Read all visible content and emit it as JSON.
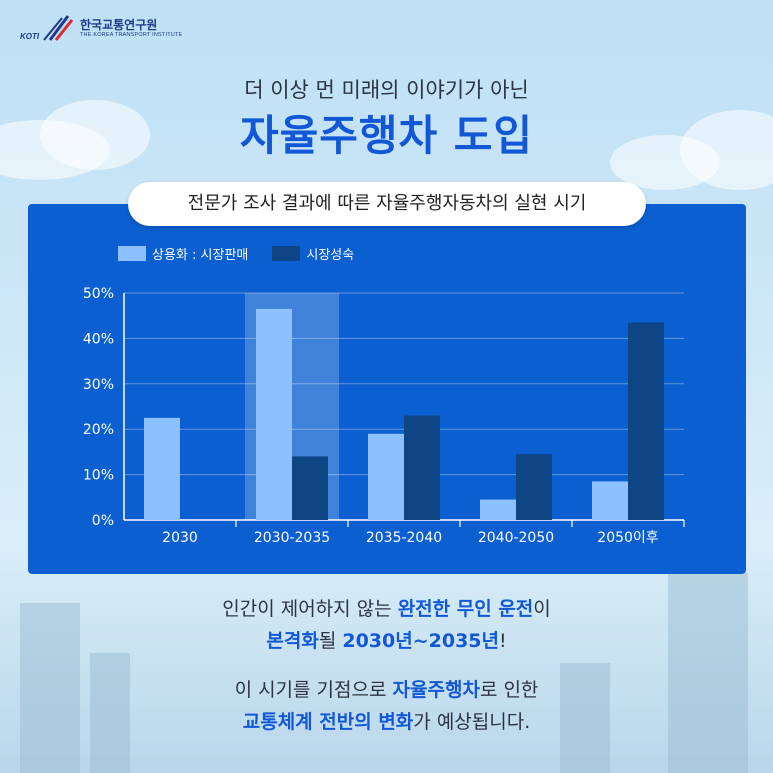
{
  "header": {
    "logo_kr": "한국교통연구원",
    "logo_en": "THE KOREA TRANSPORT INSTITUTE",
    "logo_mark": "KOTI"
  },
  "subtitle": "더 이상 먼 미래의 이야기가 아닌",
  "title": "자율주행차 도입",
  "chart_data": {
    "type": "bar",
    "title": "전문가 조사 결과에 따른 자율주행자동차의 실현 시기",
    "categories": [
      "2030",
      "2030-2035",
      "2035-2040",
      "2040-2050",
      "2050이후"
    ],
    "series": [
      {
        "name": "상용화 : 시장판매",
        "values": [
          22.5,
          46.5,
          19,
          4.5,
          8.5
        ],
        "color": "#8cc0ff"
      },
      {
        "name": "시장성숙",
        "values": [
          null,
          14,
          23,
          14.5,
          43.5
        ],
        "color": "#0e4585"
      }
    ],
    "ylim": [
      0,
      50
    ],
    "yticks": [
      "0%",
      "10%",
      "20%",
      "30%",
      "40%",
      "50%"
    ],
    "highlight_category": "2030-2035",
    "grid": true,
    "legend": "top-left"
  },
  "captions": {
    "line1_a": "인간이 제어하지 않는 ",
    "line1_b": "완전한 무인 운전",
    "line1_c": "이",
    "line2_a": "본격화",
    "line2_b": "될 ",
    "line2_c": "2030년~2035년",
    "line2_d": "!",
    "line3_a": "이 시기를 기점으로 ",
    "line3_b": "자율주행차",
    "line3_c": "로 인한",
    "line4_a": "교통체계 전반의 변화",
    "line4_b": "가 예상됩니다."
  },
  "colors": {
    "accent": "#1258d6",
    "panel": "#0b5fd0",
    "series1": "#8cc0ff",
    "series2": "#0e4585"
  }
}
